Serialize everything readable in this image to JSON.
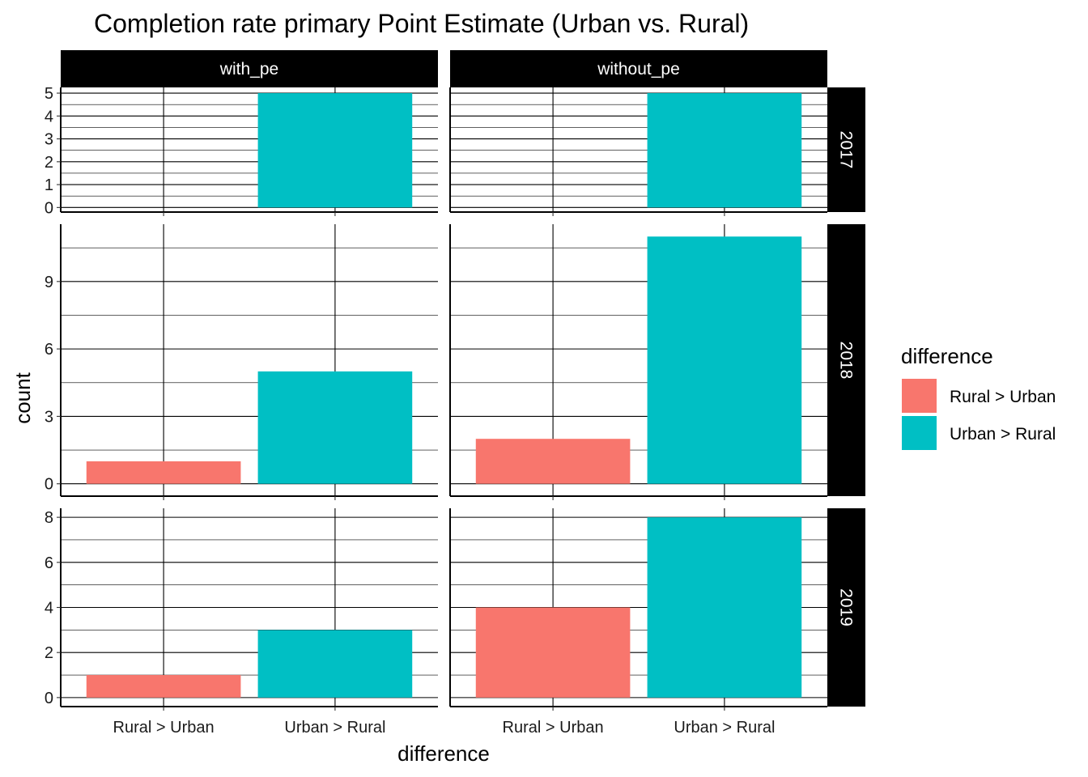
{
  "chart_data": {
    "type": "bar",
    "title": "Completion rate primary Point Estimate (Urban vs. Rural)",
    "xlabel": "difference",
    "ylabel": "count",
    "categories": [
      "Rural > Urban",
      "Urban > Rural"
    ],
    "columns": [
      "with_pe",
      "without_pe"
    ],
    "rows": [
      "2017",
      "2018",
      "2019"
    ],
    "grid": true,
    "legend": {
      "title": "difference",
      "position": "right",
      "items": [
        {
          "label": "Rural > Urban",
          "color": "#F8766D"
        },
        {
          "label": "Urban > Rural",
          "color": "#00BFC4"
        }
      ]
    },
    "panels": [
      {
        "row": "2017",
        "ylim": [
          -0.2,
          5.25
        ],
        "yticks": [
          0,
          1,
          2,
          3,
          4,
          5
        ],
        "minor_yticks": [
          0.5,
          1.5,
          2.5,
          3.5,
          4.5
        ],
        "values": {
          "with_pe": [
            0,
            5
          ],
          "without_pe": [
            0,
            5
          ]
        }
      },
      {
        "row": "2018",
        "ylim": [
          -0.55,
          11.55
        ],
        "yticks": [
          0,
          3,
          6,
          9
        ],
        "minor_yticks": [
          1.5,
          4.5,
          7.5,
          10.5
        ],
        "values": {
          "with_pe": [
            1,
            5
          ],
          "without_pe": [
            2,
            11
          ]
        }
      },
      {
        "row": "2019",
        "ylim": [
          -0.4,
          8.4
        ],
        "yticks": [
          0,
          2,
          4,
          6,
          8
        ],
        "minor_yticks": [
          1,
          3,
          5,
          7
        ],
        "values": {
          "with_pe": [
            1,
            3
          ],
          "without_pe": [
            4,
            8
          ]
        }
      }
    ]
  }
}
